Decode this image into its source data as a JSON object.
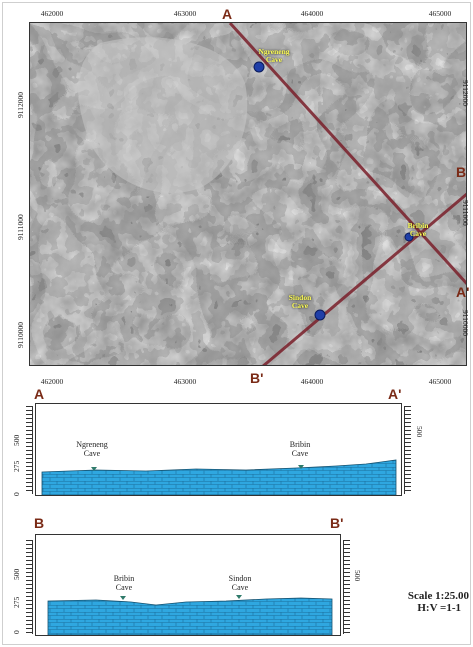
{
  "map": {
    "x_ticks": [
      "462000",
      "463000",
      "464000",
      "465000"
    ],
    "y_ticks_left": [
      "9112000",
      "9111000",
      "9110000"
    ],
    "y_ticks_right": [
      "9112000",
      "9111000",
      "9110000"
    ],
    "section_lines": [
      {
        "start": "A",
        "end": "A'"
      },
      {
        "start": "B",
        "end": "B'"
      }
    ],
    "caves": [
      "Ngreneng Cave",
      "Bribin Cave",
      "Sindon Cave"
    ],
    "colors": {
      "section_line": "#7a1f2a",
      "cave_marker": "#1f3fa8",
      "cave_label": "#ffff55"
    }
  },
  "labels": {
    "A": "A",
    "A_prime": "A'",
    "B": "B",
    "B_prime": "B'"
  },
  "profile_a": {
    "start": "A",
    "end": "A'",
    "y_ticks": [
      "500",
      "275",
      "0"
    ],
    "caves": [
      {
        "line1": "Ngreneng",
        "line2": "Cave"
      },
      {
        "line1": "Bribin",
        "line2": "Cave"
      }
    ]
  },
  "profile_b": {
    "start": "B",
    "end": "B'",
    "y_ticks": [
      "500",
      "275",
      "0"
    ],
    "caves": [
      {
        "line1": "Bribin",
        "line2": "Cave"
      },
      {
        "line1": "Sindon",
        "line2": "Cave"
      }
    ]
  },
  "scale": {
    "line1": "Scale 1:25.00",
    "line2": "H:V =1-1"
  },
  "colors": {
    "water": "#2fa7e0",
    "brick_line": "#1b6f9c",
    "marker": "#2f7a6a"
  }
}
